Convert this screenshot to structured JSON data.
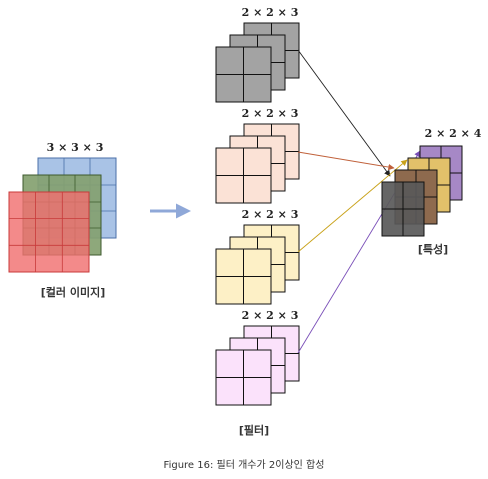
{
  "input": {
    "dims": "3 × 3 × 3",
    "caption": "[컬러 이미지]",
    "colors": {
      "red": "#f07070",
      "green": "#84a170",
      "blue": "#a9c3e6"
    }
  },
  "filters": {
    "caption": "[필터]",
    "items": [
      {
        "dims": "2 × 2 × 3",
        "color": "#a3a3a3"
      },
      {
        "dims": "2 × 2 × 3",
        "color": "#fbe2d6"
      },
      {
        "dims": "2 × 2 × 3",
        "color": "#fdf0c6"
      },
      {
        "dims": "2 × 2 × 3",
        "color": "#fbe2fb"
      }
    ]
  },
  "feature": {
    "dims": "2 × 2 × 4",
    "caption": "[특성]",
    "colors": [
      "#a688c6",
      "#e2c16a",
      "#8e6a4e",
      "#595959"
    ]
  },
  "figure_caption": "Figure 16: 필터 개수가 2이상인 합성",
  "arrow_color": "#8fa8d8"
}
